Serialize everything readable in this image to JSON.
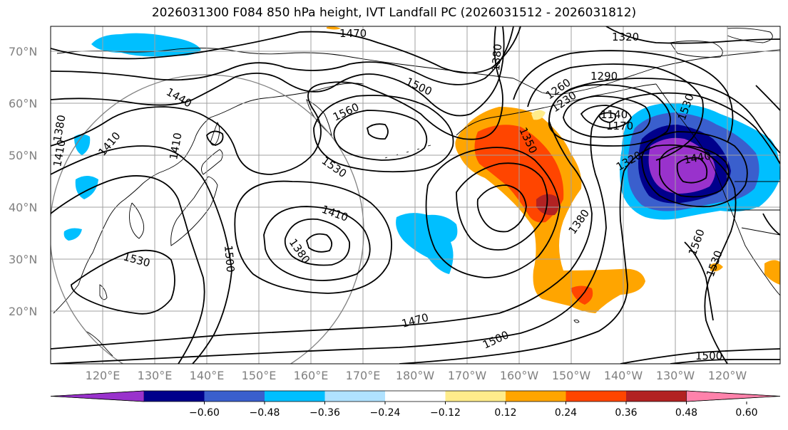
{
  "title": "2026031300 F084 850 hPa height, IVT Landfall PC (2026031512 - 2026031812)",
  "lat_labels": [
    "70°N",
    "60°N",
    "50°N",
    "40°N",
    "30°N",
    "20°N"
  ],
  "lon_labels": [
    "120°E",
    "130°E",
    "140°E",
    "150°E",
    "160°E",
    "170°E",
    "180°W",
    "170°W",
    "160°W",
    "150°W",
    "140°W",
    "130°W",
    "120°W"
  ],
  "contour_labels": [
    "1470",
    "1320",
    "1290",
    "1440",
    "1500",
    "1560",
    "1530",
    "1410",
    "1410",
    "1380",
    "1410",
    "1380",
    "1530",
    "1500",
    "1470",
    "1500",
    "1380",
    "1350",
    "1260",
    "1230",
    "1140",
    "1170",
    "1320",
    "1440",
    "1530",
    "1560",
    "1530",
    "1500",
    "1380",
    "1410"
  ],
  "colorbar": {
    "ticks": [
      "−0.60",
      "−0.48",
      "−0.36",
      "−0.24",
      "−0.12",
      "0.12",
      "0.24",
      "0.36",
      "0.48",
      "0.60"
    ],
    "colors": [
      "#9932cc",
      "#00008b",
      "#3a5fcd",
      "#00bfff",
      "#b0e2ff",
      "#ffffff",
      "#ffec8b",
      "#ffa500",
      "#ff4500",
      "#b22222",
      "#ff82ab"
    ]
  },
  "colors": {
    "frame": "#000000",
    "grid": "#a0a0a0",
    "contour": "#000000",
    "label": "#808080"
  }
}
